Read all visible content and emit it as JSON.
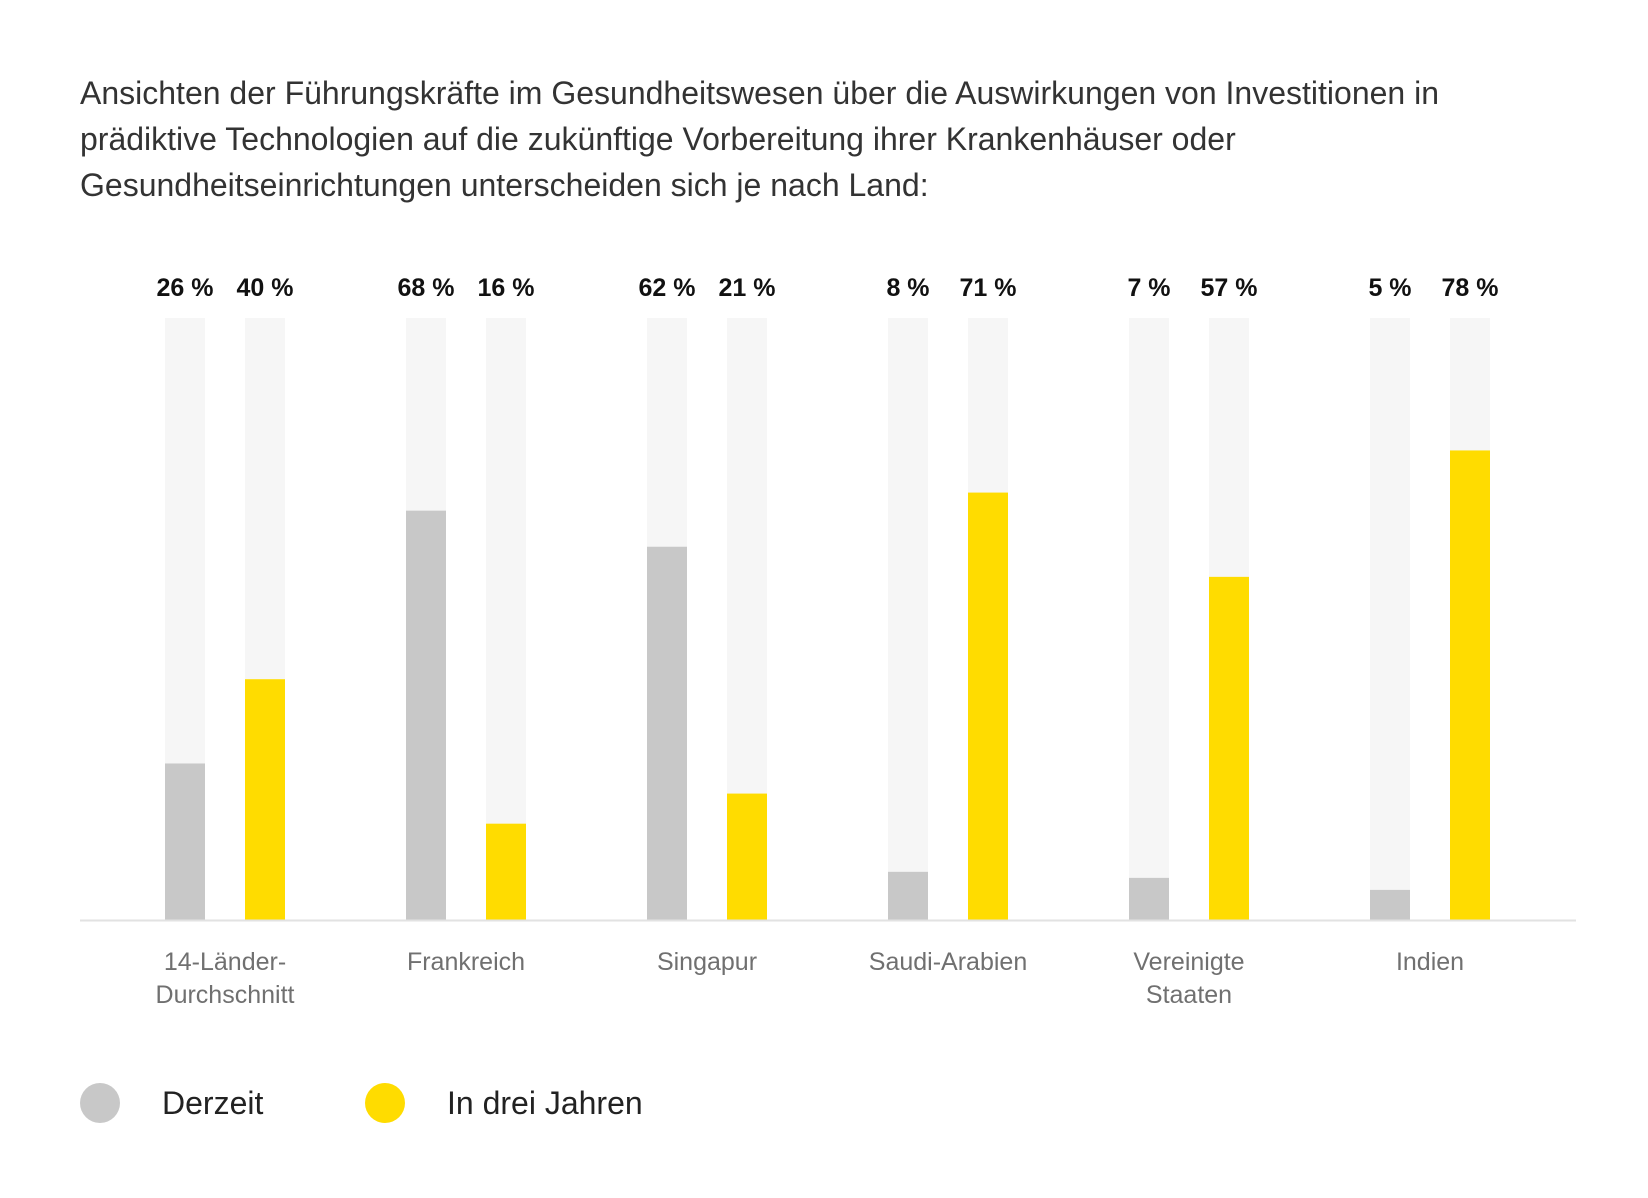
{
  "chart_data": {
    "type": "bar",
    "title": "Ansichten der Führungskräfte im Gesundheitswesen über die Auswirkungen von Investitionen in prädiktive Technologien auf die zukünftige Vorbereitung ihrer Krankenhäuser oder Gesundheitseinrichtungen unterscheiden sich je nach Land:",
    "categories": [
      [
        "14-Länder-",
        "Durchschnitt"
      ],
      [
        "Frankreich"
      ],
      [
        "Singapur"
      ],
      [
        "Saudi-Arabien"
      ],
      [
        "Vereinigte",
        "Staaten"
      ],
      [
        "Indien"
      ]
    ],
    "series": [
      {
        "name": "Derzeit",
        "color": "#c8c8c8",
        "values": [
          26,
          68,
          62,
          8,
          7,
          5
        ]
      },
      {
        "name": "In drei Jahren",
        "color": "#ffdc00",
        "values": [
          40,
          16,
          21,
          71,
          57,
          78
        ]
      }
    ],
    "value_suffix": " %",
    "ylim": [
      0,
      100
    ],
    "track_color": "#f6f6f6",
    "grid": false,
    "legend_placement": "bottom-left"
  }
}
